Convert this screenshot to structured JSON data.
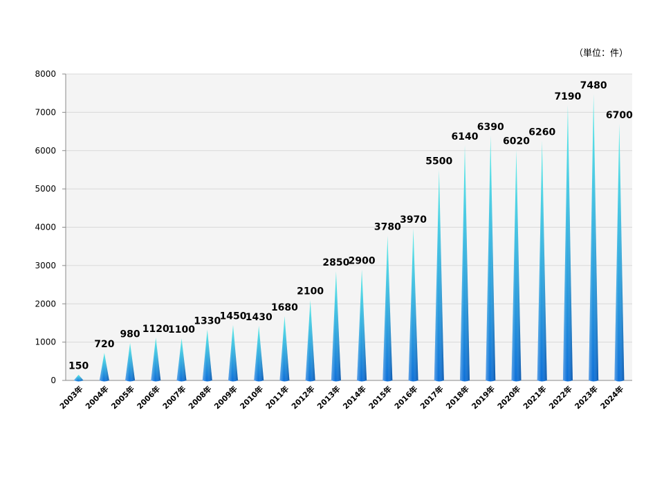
{
  "unit_label": "（単位：件）",
  "chart_data": {
    "type": "bar",
    "bar_shape": "cone",
    "categories": [
      "2003年",
      "2004年",
      "2005年",
      "2006年",
      "2007年",
      "2008年",
      "2009年",
      "2010年",
      "2011年",
      "2012年",
      "2013年",
      "2014年",
      "2015年",
      "2016年",
      "2017年",
      "2018年",
      "2019年",
      "2020年",
      "2021年",
      "2022年",
      "2023年",
      "2024年"
    ],
    "values": [
      150,
      720,
      980,
      1120,
      1100,
      1330,
      1450,
      1430,
      1680,
      2100,
      2850,
      2900,
      3780,
      3970,
      5500,
      6140,
      6390,
      6020,
      6260,
      7190,
      7480,
      6700
    ],
    "ylim": [
      0,
      8000
    ],
    "yticks": [
      0,
      1000,
      2000,
      3000,
      4000,
      5000,
      6000,
      7000,
      8000
    ],
    "grid": true,
    "legend": "none",
    "colors": {
      "bar_top": "#5ef0e8",
      "bar_bottom": "#0a6ed8",
      "plot_bg": "#f4f4f4",
      "grid": "#d8d8d8"
    }
  }
}
